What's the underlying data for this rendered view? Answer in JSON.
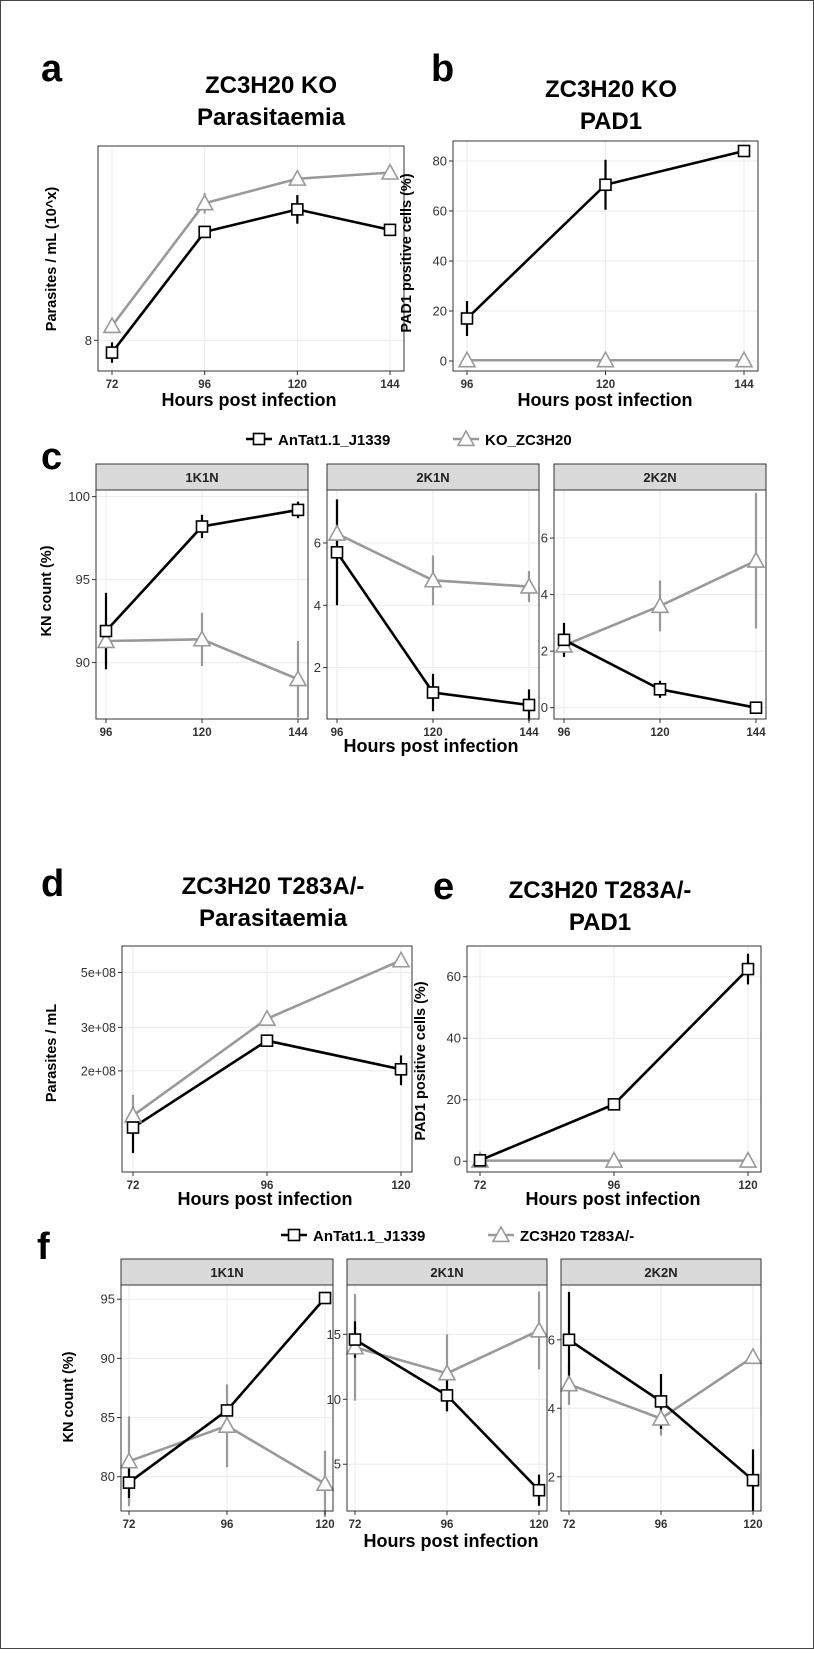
{
  "colors": {
    "control": "#000000",
    "mutant": "#999999",
    "strip_fill": "#d9d9d9",
    "grid": "#ebebeb",
    "frame": "#333333"
  },
  "chart_data": [
    {
      "id": "a",
      "type": "line",
      "panel_label": "a",
      "title": [
        "ZC3H20 KO",
        "Parasitaemia"
      ],
      "xlabel": "Hours post infection",
      "ylabel": "Parasites / mL (10^x)",
      "x": [
        72,
        96,
        120,
        144
      ],
      "xticks": [
        "72",
        "96",
        "120",
        "144"
      ],
      "yticks": [
        8
      ],
      "ytick_labels": [
        "8"
      ],
      "ylim": [
        7.85,
        8.95
      ],
      "series": [
        {
          "name": "AnTat1.1_J1339",
          "values": [
            7.94,
            8.53,
            8.64,
            8.54
          ],
          "err": [
            0.05,
            0,
            0.07,
            0
          ]
        },
        {
          "name": "KO_ZC3H20",
          "values": [
            8.07,
            8.67,
            8.79,
            8.82
          ],
          "err": [
            0,
            0.05,
            0,
            0
          ]
        }
      ]
    },
    {
      "id": "b",
      "type": "line",
      "panel_label": "b",
      "title": [
        "ZC3H20 KO",
        "PAD1"
      ],
      "xlabel": "Hours post infection",
      "ylabel": "PAD1 positive cells (%)",
      "x": [
        96,
        120,
        144
      ],
      "xticks": [
        "96",
        "120",
        "144"
      ],
      "yticks": [
        0,
        20,
        40,
        60,
        80
      ],
      "ytick_labels": [
        "0",
        "20",
        "40",
        "60",
        "80"
      ],
      "ylim": [
        -4,
        88
      ],
      "series": [
        {
          "name": "AnTat1.1_J1339",
          "values": [
            17,
            70.5,
            84
          ],
          "err": [
            7,
            10,
            0
          ]
        },
        {
          "name": "KO_ZC3H20",
          "values": [
            0.3,
            0.3,
            0.3
          ],
          "err": [
            0,
            0,
            0
          ]
        }
      ]
    },
    {
      "id": "c",
      "type": "line",
      "panel_label": "c",
      "legend": [
        "AnTat1.1_J1339",
        "KO_ZC3H20"
      ],
      "xlabel": "Hours post infection",
      "ylabel": "KN count (%)",
      "facets": [
        {
          "strip": "1K1N",
          "x": [
            96,
            120,
            144
          ],
          "xticks": [
            "96",
            "120",
            "144"
          ],
          "yticks": [
            90,
            95,
            100
          ],
          "ytick_labels": [
            "90",
            "95",
            "100"
          ],
          "ylim": [
            86.6,
            100.4
          ],
          "series": [
            {
              "name": "AnTat1.1_J1339",
              "values": [
                91.9,
                98.2,
                99.2
              ],
              "err": [
                2.3,
                0.7,
                0.5
              ]
            },
            {
              "name": "KO_ZC3H20",
              "values": [
                91.3,
                91.4,
                89.0
              ],
              "err": [
                1.5,
                1.6,
                2.3
              ]
            }
          ]
        },
        {
          "strip": "2K1N",
          "x": [
            96,
            120,
            144
          ],
          "xticks": [
            "96",
            "120",
            "144"
          ],
          "yticks": [
            2,
            4,
            6
          ],
          "ytick_labels": [
            "2",
            "4",
            "6"
          ],
          "ylim": [
            0.35,
            7.7
          ],
          "series": [
            {
              "name": "AnTat1.1_J1339",
              "values": [
                5.7,
                1.2,
                0.8
              ],
              "err": [
                1.7,
                0.6,
                0.5
              ]
            },
            {
              "name": "KO_ZC3H20",
              "values": [
                6.3,
                4.8,
                4.6
              ],
              "err": [
                1.1,
                0.8,
                0.5
              ]
            }
          ]
        },
        {
          "strip": "2K2N",
          "x": [
            96,
            120,
            144
          ],
          "xticks": [
            "96",
            "120",
            "144"
          ],
          "yticks": [
            0,
            2,
            4,
            6
          ],
          "ytick_labels": [
            "0",
            "2",
            "4",
            "6"
          ],
          "ylim": [
            -0.4,
            7.7
          ],
          "series": [
            {
              "name": "AnTat1.1_J1339",
              "values": [
                2.4,
                0.65,
                0.0
              ],
              "err": [
                0.6,
                0.3,
                0
              ]
            },
            {
              "name": "KO_ZC3H20",
              "values": [
                2.2,
                3.6,
                5.2
              ],
              "err": [
                0.4,
                0.9,
                2.4
              ]
            }
          ]
        }
      ]
    },
    {
      "id": "d",
      "type": "line",
      "panel_label": "d",
      "title": [
        "ZC3H20 T283A/-",
        "Parasitaemia"
      ],
      "xlabel": "Hours post infection",
      "ylabel": "Parasites / mL",
      "x": [
        72,
        96,
        120
      ],
      "xticks": [
        "72",
        "96",
        "120"
      ],
      "yticks": [
        200000000,
        300000000,
        500000000
      ],
      "ytick_labels": [
        "2e+08",
        "3e+08",
        "5e+08"
      ],
      "ylim": [
        78000000,
        640000000
      ],
      "yscale": "log",
      "series": [
        {
          "name": "AnTat1.1_J1339",
          "values": [
            118000000,
            265000000,
            203000000
          ],
          "err": [
            25000000,
            10000000,
            28000000
          ]
        },
        {
          "name": "ZC3H20 T283A/-",
          "values": [
            132000000,
            325000000,
            560000000
          ],
          "err": [
            28000000,
            0,
            0
          ]
        }
      ]
    },
    {
      "id": "e",
      "type": "line",
      "panel_label": "e",
      "title": [
        "ZC3H20 T283A/-",
        "PAD1"
      ],
      "xlabel": "Hours post infection",
      "ylabel": "PAD1 positive cells (%)",
      "x": [
        72,
        96,
        120
      ],
      "xticks": [
        "72",
        "96",
        "120"
      ],
      "yticks": [
        0,
        20,
        40,
        60
      ],
      "ytick_labels": [
        "0",
        "20",
        "40",
        "60"
      ],
      "ylim": [
        -3.5,
        70
      ],
      "series": [
        {
          "name": "AnTat1.1_J1339",
          "values": [
            0.3,
            18.5,
            62.5
          ],
          "err": [
            0,
            0,
            5
          ]
        },
        {
          "name": "ZC3H20 T283A/-",
          "values": [
            0.2,
            0.2,
            0.2
          ],
          "err": [
            0,
            0,
            0
          ]
        }
      ]
    },
    {
      "id": "f",
      "type": "line",
      "panel_label": "f",
      "legend": [
        "AnTat1.1_J1339",
        "ZC3H20 T283A/-"
      ],
      "xlabel": "Hours post infection",
      "ylabel": "KN count (%)",
      "facets": [
        {
          "strip": "1K1N",
          "x": [
            72,
            96,
            120
          ],
          "xticks": [
            "72",
            "96",
            "120"
          ],
          "yticks": [
            80,
            85,
            90,
            95
          ],
          "ytick_labels": [
            "80",
            "85",
            "90",
            "95"
          ],
          "ylim": [
            77.1,
            96.2
          ],
          "series": [
            {
              "name": "AnTat1.1_J1339",
              "values": [
                79.5,
                85.6,
                95.1
              ],
              "err": [
                1.3,
                0,
                0
              ]
            },
            {
              "name": "ZC3H20 T283A/-",
              "values": [
                81.3,
                84.3,
                79.4
              ],
              "err": [
                3.8,
                3.5,
                2.8
              ]
            }
          ]
        },
        {
          "strip": "2K1N",
          "x": [
            72,
            96,
            120
          ],
          "xticks": [
            "72",
            "96",
            "120"
          ],
          "yticks": [
            5,
            10,
            15
          ],
          "ytick_labels": [
            "5",
            "10",
            "15"
          ],
          "ylim": [
            1.4,
            18.8
          ],
          "series": [
            {
              "name": "AnTat1.1_J1339",
              "values": [
                14.6,
                10.3,
                3.0
              ],
              "err": [
                1.4,
                1.2,
                1.2
              ]
            },
            {
              "name": "ZC3H20 T283A/-",
              "values": [
                14.0,
                12.0,
                15.3
              ],
              "err": [
                4.1,
                3.0,
                3.0
              ]
            }
          ]
        },
        {
          "strip": "2K2N",
          "x": [
            72,
            96,
            120
          ],
          "xticks": [
            "72",
            "96",
            "120"
          ],
          "yticks": [
            2,
            4,
            6
          ],
          "ytick_labels": [
            "2",
            "4",
            "6"
          ],
          "ylim": [
            1.0,
            7.6
          ],
          "series": [
            {
              "name": "AnTat1.1_J1339",
              "values": [
                6.0,
                4.2,
                1.9
              ],
              "err": [
                1.4,
                0.8,
                0.9
              ]
            },
            {
              "name": "ZC3H20 T283A/-",
              "values": [
                4.7,
                3.7,
                5.5
              ],
              "err": [
                0.6,
                0.5,
                0
              ]
            }
          ]
        }
      ]
    }
  ]
}
